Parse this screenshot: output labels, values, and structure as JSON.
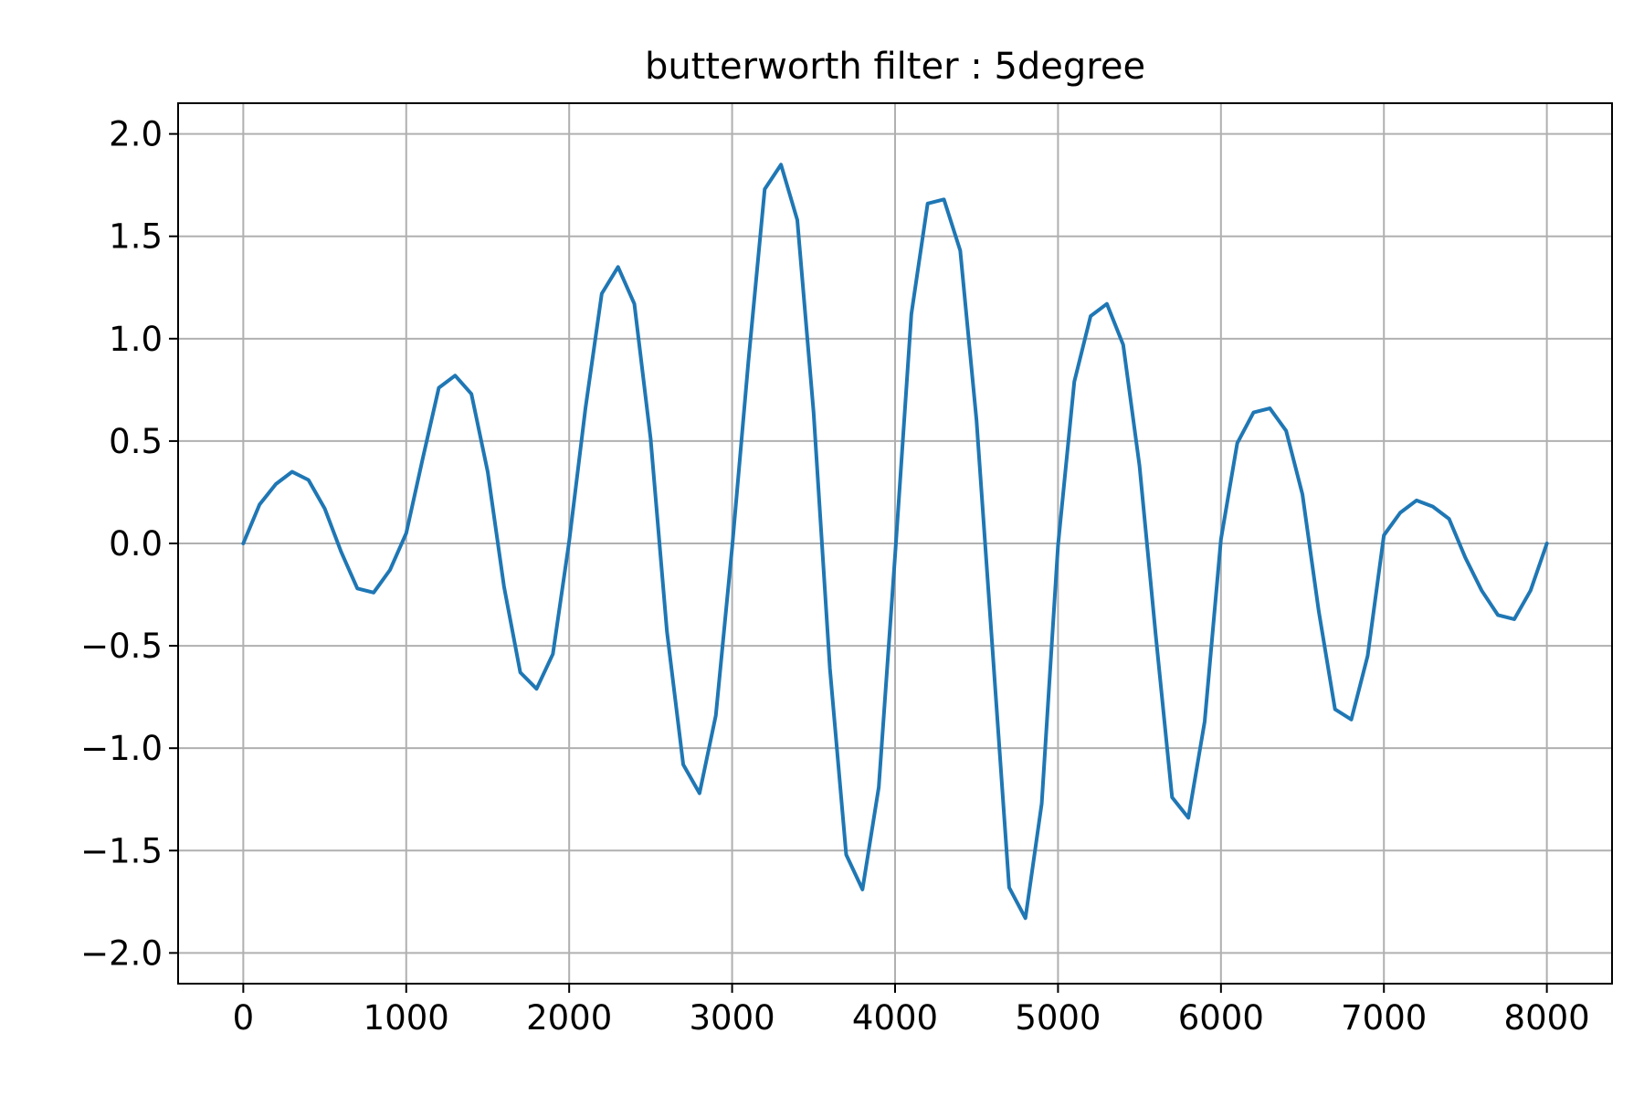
{
  "chart_data": {
    "type": "line",
    "title": "butterworth filter : 5degree",
    "xlabel": "",
    "ylabel": "",
    "xlim": [
      -400,
      8400
    ],
    "ylim": [
      -2.15,
      2.15
    ],
    "x_ticks": [
      0,
      1000,
      2000,
      3000,
      4000,
      5000,
      6000,
      7000,
      8000
    ],
    "x_tick_labels": [
      "0",
      "1000",
      "2000",
      "3000",
      "4000",
      "5000",
      "6000",
      "7000",
      "8000"
    ],
    "y_ticks": [
      2.0,
      1.5,
      1.0,
      0.5,
      0.0,
      -0.5,
      -1.0,
      -1.5,
      -2.0
    ],
    "y_tick_labels": [
      "2.0",
      "1.5",
      "1.0",
      "0.5",
      "0.0",
      "−0.5",
      "−1.0",
      "−1.5",
      "−2.0"
    ],
    "grid": true,
    "legend": false,
    "series": [
      {
        "color": "#1f77b4",
        "x": [
          0,
          100,
          200,
          300,
          400,
          500,
          600,
          700,
          800,
          900,
          1000,
          1100,
          1200,
          1300,
          1400,
          1500,
          1600,
          1700,
          1800,
          1900,
          2000,
          2100,
          2200,
          2300,
          2400,
          2500,
          2600,
          2700,
          2800,
          2900,
          3000,
          3100,
          3200,
          3300,
          3400,
          3500,
          3600,
          3700,
          3800,
          3900,
          4000,
          4100,
          4200,
          4300,
          4400,
          4500,
          4600,
          4700,
          4800,
          4900,
          5000,
          5100,
          5200,
          5300,
          5400,
          5500,
          5600,
          5700,
          5800,
          5900,
          6000,
          6100,
          6200,
          6300,
          6400,
          6500,
          6600,
          6700,
          6800,
          6900,
          7000,
          7100,
          7200,
          7300,
          7400,
          7500,
          7600,
          7700,
          7800,
          7900,
          8000
        ],
        "y": [
          0.0,
          0.19,
          0.29,
          0.35,
          0.31,
          0.17,
          -0.04,
          -0.22,
          -0.24,
          -0.13,
          0.05,
          0.41,
          0.76,
          0.82,
          0.73,
          0.35,
          -0.21,
          -0.63,
          -0.71,
          -0.54,
          0.01,
          0.66,
          1.22,
          1.35,
          1.17,
          0.51,
          -0.43,
          -1.08,
          -1.22,
          -0.84,
          -0.02,
          0.89,
          1.73,
          1.85,
          1.58,
          0.64,
          -0.61,
          -1.52,
          -1.69,
          -1.19,
          -0.06,
          1.12,
          1.66,
          1.68,
          1.43,
          0.6,
          -0.54,
          -1.68,
          -1.83,
          -1.27,
          -0.01,
          0.79,
          1.11,
          1.17,
          0.97,
          0.38,
          -0.45,
          -1.24,
          -1.34,
          -0.87,
          0.02,
          0.49,
          0.64,
          0.66,
          0.55,
          0.24,
          -0.33,
          -0.81,
          -0.86,
          -0.55,
          0.04,
          0.15,
          0.21,
          0.18,
          0.12,
          -0.07,
          -0.23,
          -0.35,
          -0.37,
          -0.23,
          0.0
        ]
      }
    ]
  }
}
